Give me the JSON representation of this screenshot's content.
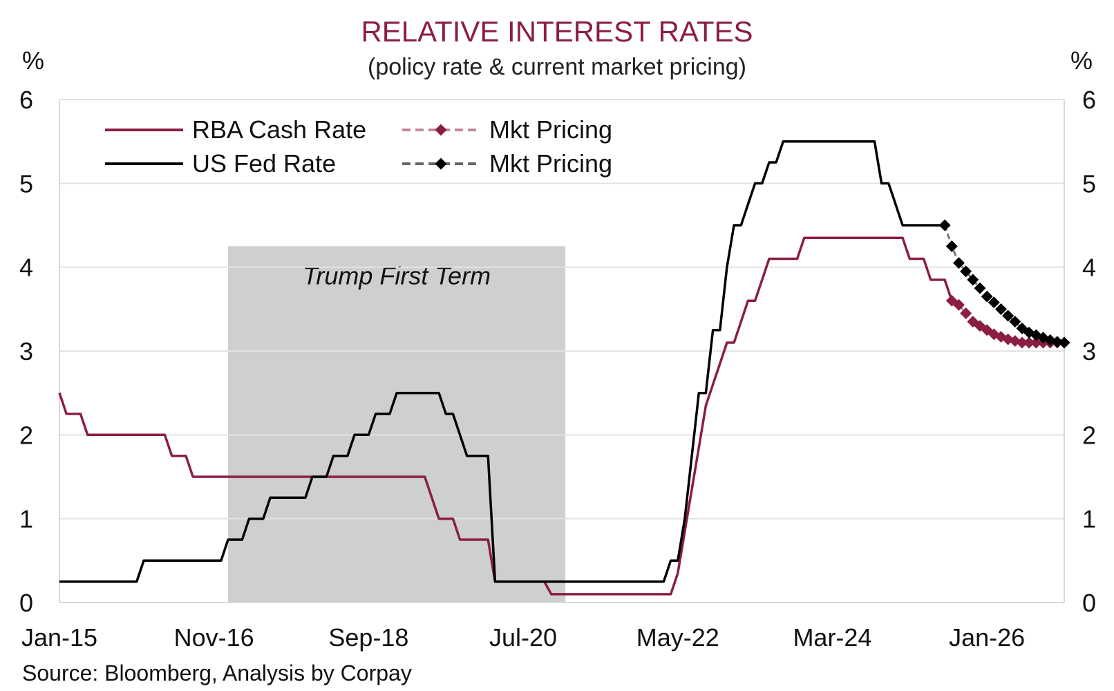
{
  "chart_data": {
    "type": "line",
    "title": "RELATIVE INTEREST RATES",
    "subtitle": "(policy rate & current market pricing)",
    "ylabel_left": "%",
    "ylabel_right": "%",
    "ylim": [
      0,
      6
    ],
    "yticks": [
      "0",
      "1",
      "2",
      "3",
      "4",
      "5",
      "6"
    ],
    "xlim": [
      "2015-01",
      "2026-12"
    ],
    "xticks": [
      {
        "label": "Jan-15",
        "date": "2015-01"
      },
      {
        "label": "Nov-16",
        "date": "2016-11"
      },
      {
        "label": "Sep-18",
        "date": "2018-09"
      },
      {
        "label": "Jul-20",
        "date": "2020-07"
      },
      {
        "label": "May-22",
        "date": "2022-05"
      },
      {
        "label": "Mar-24",
        "date": "2024-03"
      },
      {
        "label": "Jan-26",
        "date": "2026-01"
      }
    ],
    "grid": true,
    "legend_position": "top-left",
    "shaded_region": {
      "label": "Trump First Term",
      "start": "2017-01",
      "end": "2021-01",
      "ymax": 4.25
    },
    "series": [
      {
        "name": "RBA Cash Rate",
        "color": "#8b1d45",
        "style": "solid",
        "points": [
          [
            "2015-01",
            2.5
          ],
          [
            "2015-02",
            2.25
          ],
          [
            "2015-04",
            2.25
          ],
          [
            "2015-05",
            2.0
          ],
          [
            "2016-04",
            2.0
          ],
          [
            "2016-05",
            1.75
          ],
          [
            "2016-07",
            1.75
          ],
          [
            "2016-08",
            1.5
          ],
          [
            "2019-05",
            1.5
          ],
          [
            "2019-06",
            1.25
          ],
          [
            "2019-07",
            1.0
          ],
          [
            "2019-09",
            1.0
          ],
          [
            "2019-10",
            0.75
          ],
          [
            "2020-02",
            0.75
          ],
          [
            "2020-03",
            0.25
          ],
          [
            "2020-10",
            0.25
          ],
          [
            "2020-11",
            0.1
          ],
          [
            "2022-04",
            0.1
          ],
          [
            "2022-05",
            0.35
          ],
          [
            "2022-06",
            0.85
          ],
          [
            "2022-07",
            1.35
          ],
          [
            "2022-08",
            1.85
          ],
          [
            "2022-09",
            2.35
          ],
          [
            "2022-10",
            2.6
          ],
          [
            "2022-11",
            2.85
          ],
          [
            "2022-12",
            3.1
          ],
          [
            "2023-01",
            3.1
          ],
          [
            "2023-02",
            3.35
          ],
          [
            "2023-03",
            3.6
          ],
          [
            "2023-04",
            3.6
          ],
          [
            "2023-05",
            3.85
          ],
          [
            "2023-06",
            4.1
          ],
          [
            "2023-10",
            4.1
          ],
          [
            "2023-11",
            4.35
          ],
          [
            "2025-01",
            4.35
          ],
          [
            "2025-02",
            4.1
          ],
          [
            "2025-04",
            4.1
          ],
          [
            "2025-05",
            3.85
          ],
          [
            "2025-07",
            3.85
          ],
          [
            "2025-08",
            3.6
          ]
        ]
      },
      {
        "name": "US Fed Rate",
        "color": "#000000",
        "style": "solid",
        "points": [
          [
            "2015-01",
            0.25
          ],
          [
            "2015-12",
            0.25
          ],
          [
            "2016-01",
            0.5
          ],
          [
            "2016-12",
            0.5
          ],
          [
            "2017-01",
            0.75
          ],
          [
            "2017-03",
            0.75
          ],
          [
            "2017-04",
            1.0
          ],
          [
            "2017-06",
            1.0
          ],
          [
            "2017-07",
            1.25
          ],
          [
            "2017-12",
            1.25
          ],
          [
            "2018-01",
            1.5
          ],
          [
            "2018-03",
            1.5
          ],
          [
            "2018-04",
            1.75
          ],
          [
            "2018-06",
            1.75
          ],
          [
            "2018-07",
            2.0
          ],
          [
            "2018-09",
            2.0
          ],
          [
            "2018-10",
            2.25
          ],
          [
            "2018-12",
            2.25
          ],
          [
            "2019-01",
            2.5
          ],
          [
            "2019-07",
            2.5
          ],
          [
            "2019-08",
            2.25
          ],
          [
            "2019-09",
            2.25
          ],
          [
            "2019-10",
            2.0
          ],
          [
            "2019-11",
            1.75
          ],
          [
            "2020-02",
            1.75
          ],
          [
            "2020-03",
            0.25
          ],
          [
            "2022-03",
            0.25
          ],
          [
            "2022-04",
            0.5
          ],
          [
            "2022-05",
            0.5
          ],
          [
            "2022-06",
            1.0
          ],
          [
            "2022-07",
            1.75
          ],
          [
            "2022-08",
            2.5
          ],
          [
            "2022-09",
            2.5
          ],
          [
            "2022-10",
            3.25
          ],
          [
            "2022-11",
            3.25
          ],
          [
            "2022-12",
            4.0
          ],
          [
            "2023-01",
            4.5
          ],
          [
            "2023-02",
            4.5
          ],
          [
            "2023-03",
            4.75
          ],
          [
            "2023-04",
            5.0
          ],
          [
            "2023-05",
            5.0
          ],
          [
            "2023-06",
            5.25
          ],
          [
            "2023-07",
            5.25
          ],
          [
            "2023-08",
            5.5
          ],
          [
            "2024-09",
            5.5
          ],
          [
            "2024-10",
            5.0
          ],
          [
            "2024-11",
            5.0
          ],
          [
            "2024-12",
            4.75
          ],
          [
            "2025-01",
            4.5
          ],
          [
            "2025-07",
            4.5
          ]
        ]
      },
      {
        "name": "Mkt Pricing",
        "color": "#8b1d45",
        "style": "dashed-markers",
        "points": [
          [
            "2025-08",
            3.6
          ],
          [
            "2025-09",
            3.55
          ],
          [
            "2025-10",
            3.45
          ],
          [
            "2025-11",
            3.35
          ],
          [
            "2025-12",
            3.3
          ],
          [
            "2026-01",
            3.25
          ],
          [
            "2026-02",
            3.2
          ],
          [
            "2026-03",
            3.17
          ],
          [
            "2026-04",
            3.14
          ],
          [
            "2026-05",
            3.12
          ],
          [
            "2026-06",
            3.1
          ],
          [
            "2026-07",
            3.1
          ],
          [
            "2026-08",
            3.1
          ],
          [
            "2026-09",
            3.1
          ],
          [
            "2026-10",
            3.1
          ],
          [
            "2026-11",
            3.1
          ],
          [
            "2026-12",
            3.1
          ]
        ]
      },
      {
        "name": "Mkt Pricing",
        "color": "#000000",
        "style": "dashed-markers",
        "points": [
          [
            "2025-07",
            4.5
          ],
          [
            "2025-08",
            4.25
          ],
          [
            "2025-09",
            4.05
          ],
          [
            "2025-10",
            3.95
          ],
          [
            "2025-11",
            3.85
          ],
          [
            "2025-12",
            3.75
          ],
          [
            "2026-01",
            3.65
          ],
          [
            "2026-02",
            3.58
          ],
          [
            "2026-03",
            3.5
          ],
          [
            "2026-04",
            3.42
          ],
          [
            "2026-05",
            3.35
          ],
          [
            "2026-06",
            3.27
          ],
          [
            "2026-07",
            3.22
          ],
          [
            "2026-08",
            3.19
          ],
          [
            "2026-09",
            3.16
          ],
          [
            "2026-10",
            3.13
          ],
          [
            "2026-11",
            3.11
          ],
          [
            "2026-12",
            3.1
          ]
        ]
      }
    ],
    "source": "Source: Bloomberg, Analysis by Corpay"
  }
}
